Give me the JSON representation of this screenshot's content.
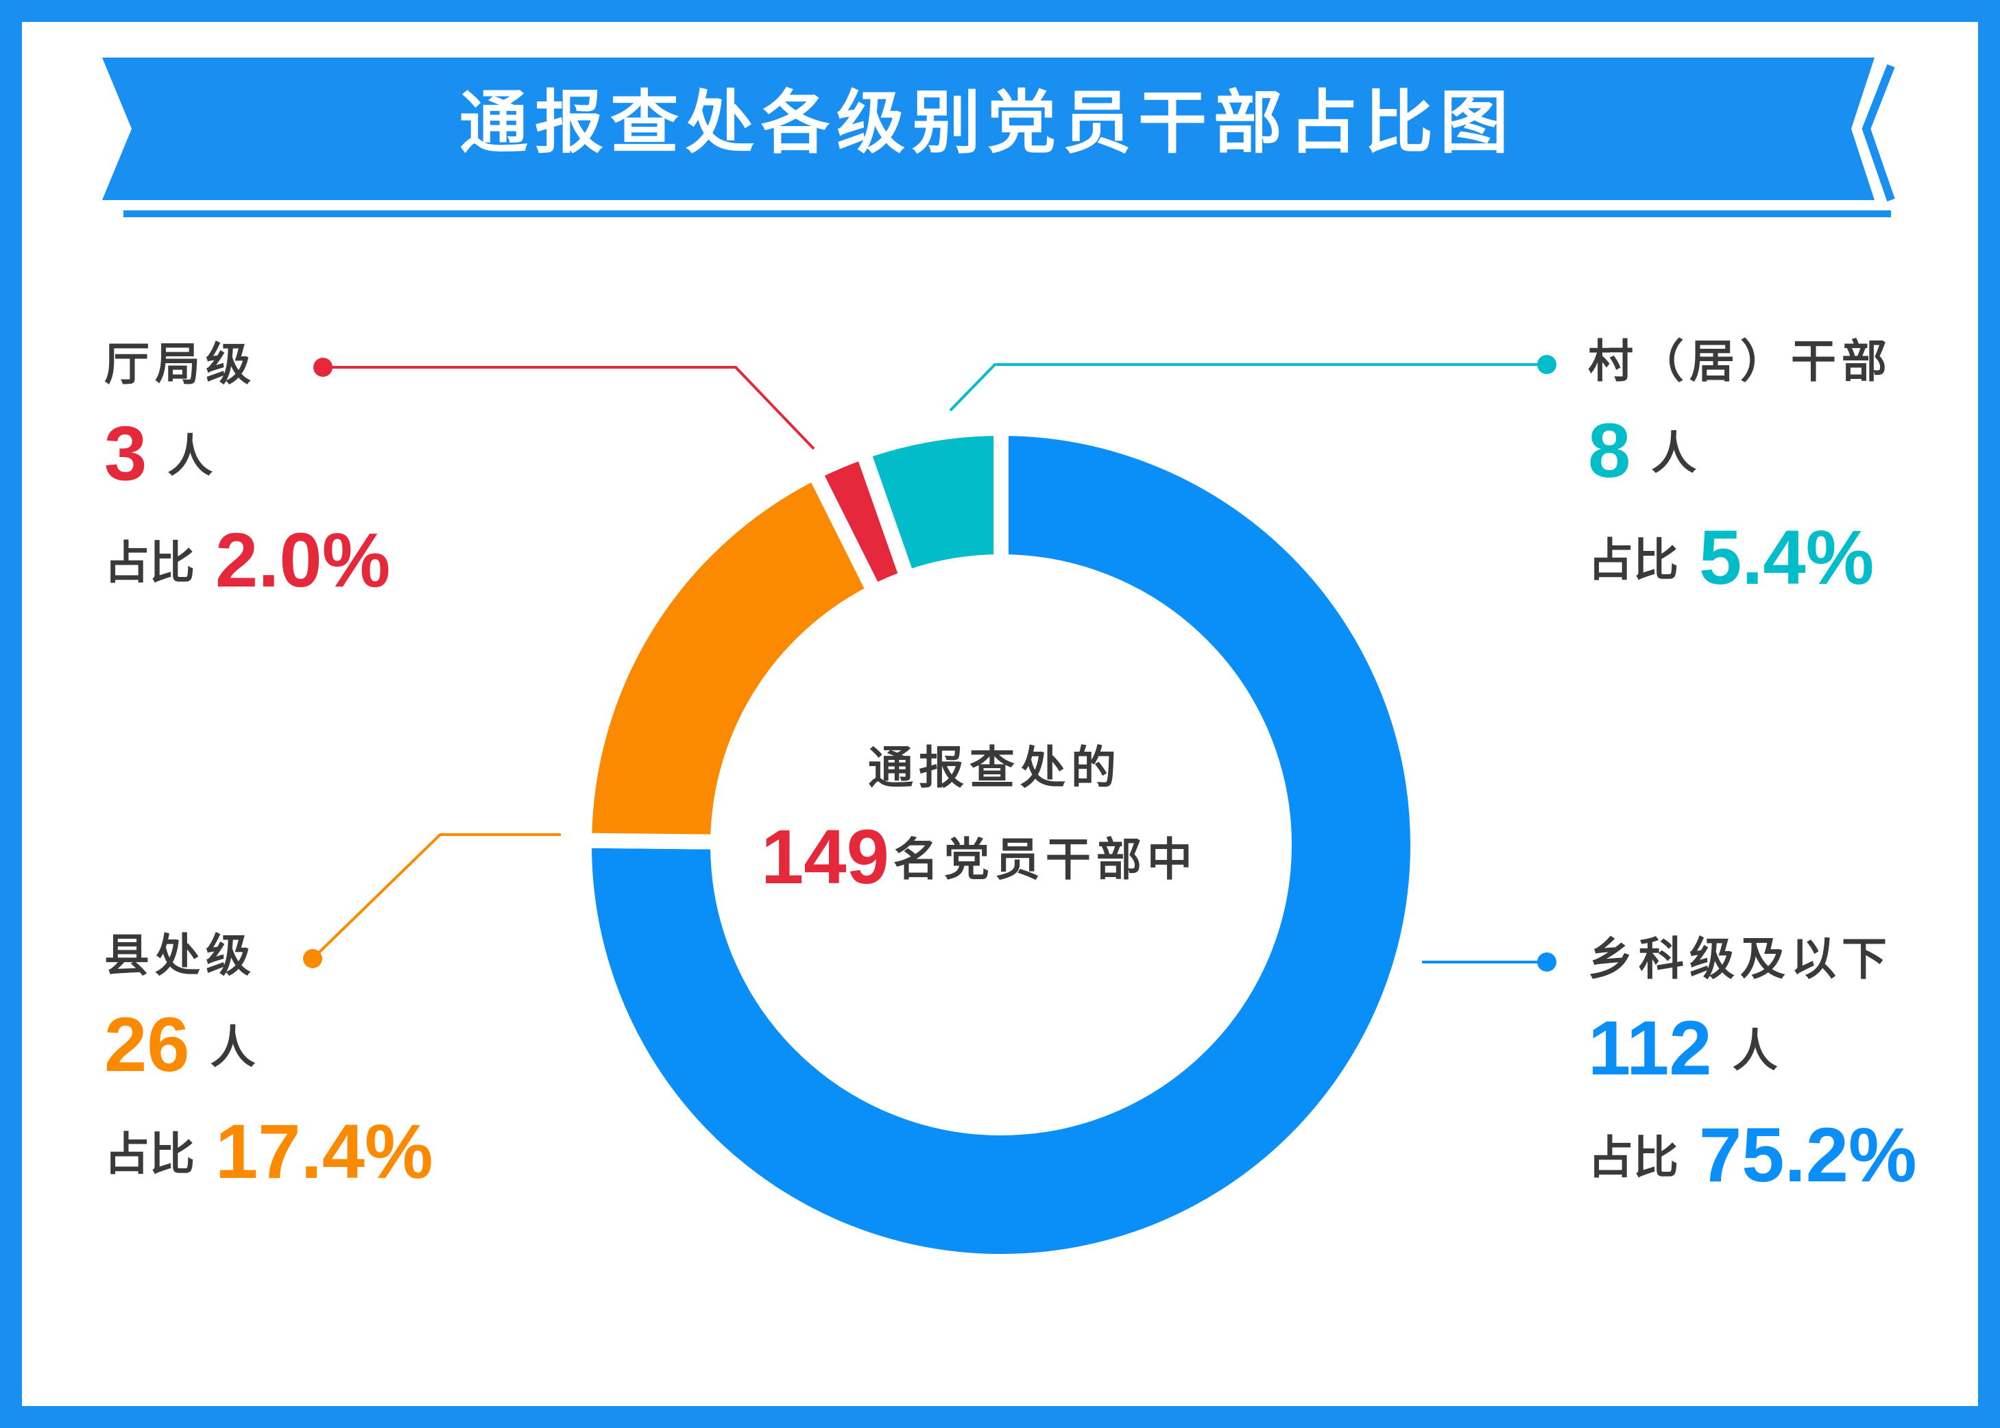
{
  "chart_data": {
    "type": "donut",
    "title": "通报查处各级别党员干部占比图",
    "center_text_top": "通报查处的",
    "total": 149,
    "center_text_bottom": "名党员干部中",
    "unit": "人",
    "share_label": "占比",
    "categories": [
      "乡科级及以下",
      "县处级",
      "厅局级",
      "村（居）干部"
    ],
    "values": [
      112,
      26,
      3,
      8
    ],
    "percents": [
      75.2,
      17.4,
      2.0,
      5.4
    ],
    "percent_labels": [
      "75.2%",
      "17.4%",
      "2.0%",
      "5.4%"
    ],
    "colors": [
      "#0a8ef7",
      "#fb8a00",
      "#e5283a",
      "#00bdc9"
    ]
  }
}
